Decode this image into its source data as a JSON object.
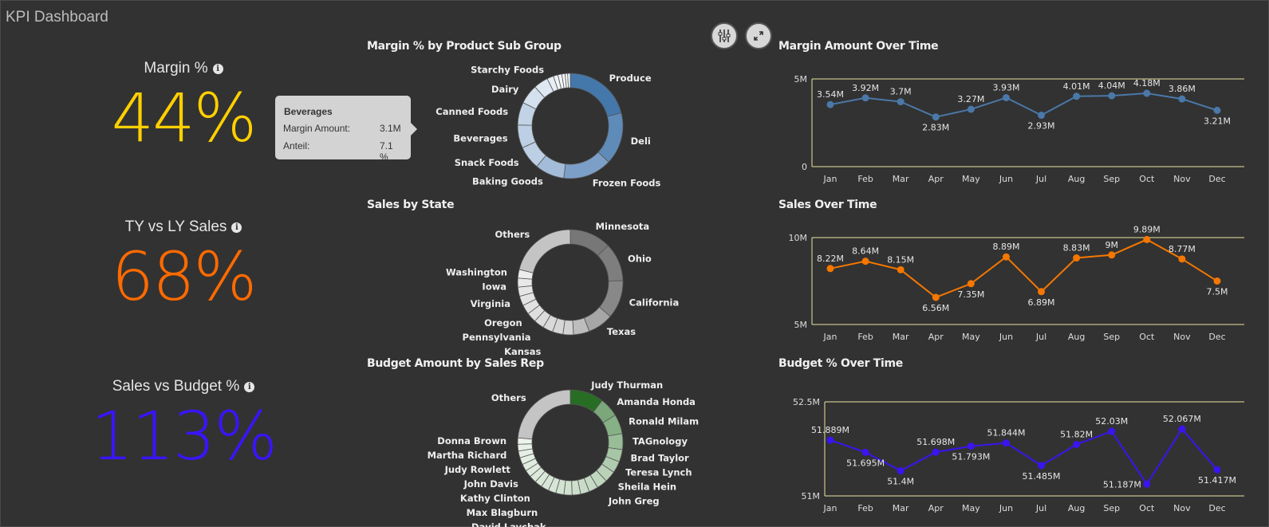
{
  "app": {
    "title": "KPI Dashboard"
  },
  "kpis": [
    {
      "label": "Margin %",
      "value": "44%",
      "color": "#ffd000"
    },
    {
      "label": "TY vs LY Sales",
      "value": "68%",
      "color": "#ff6a00"
    },
    {
      "label": "Sales vs Budget %",
      "value": "113%",
      "color": "#3a14ff"
    }
  ],
  "toolbar": {
    "filter_icon": "sliders-icon",
    "expand_icon": "expand-icon"
  },
  "tooltip": {
    "title": "Beverages",
    "rows": [
      {
        "label": "Margin Amount:",
        "value": "3.1M"
      },
      {
        "label": "Anteil:",
        "value": "7.1 %"
      }
    ]
  },
  "chart_data": [
    {
      "type": "pie",
      "title": "Margin % by Product Sub Group",
      "slices": [
        {
          "name": "Produce",
          "value": 21,
          "color": "#4477aa"
        },
        {
          "name": "Deli",
          "value": 16,
          "color": "#5f8bb9"
        },
        {
          "name": "Frozen Foods",
          "value": 15,
          "color": "#7c9fc7"
        },
        {
          "name": "Baking Goods",
          "value": 9,
          "color": "#a3bcd9"
        },
        {
          "name": "Snack Foods",
          "value": 7.2,
          "color": "#bccfe4"
        },
        {
          "name": "Beverages",
          "value": 7.1,
          "color": "#bccfe4"
        },
        {
          "name": "Canned Foods",
          "value": 7,
          "color": "#c2d3e6"
        },
        {
          "name": "Dairy",
          "value": 6,
          "color": "#d4e0ee"
        },
        {
          "name": "",
          "value": 4.5,
          "color": "#dfe8f2"
        },
        {
          "name": "Starchy Foods",
          "value": 2,
          "color": "#e6edf5"
        },
        {
          "name": "",
          "value": 1.4,
          "color": "#eef3f8"
        },
        {
          "name": "",
          "value": 1.2,
          "color": "#f2f6fa"
        },
        {
          "name": "",
          "value": 1,
          "color": "#f5f8fb"
        },
        {
          "name": "",
          "value": 0.8,
          "color": "#f8fafc"
        },
        {
          "name": "",
          "value": 0.8,
          "color": "#fafbfd"
        }
      ]
    },
    {
      "type": "pie",
      "title": "Sales by State",
      "slices": [
        {
          "name": "Minnesota",
          "value": 13,
          "color": "#777777"
        },
        {
          "name": "Ohio",
          "value": 12,
          "color": "#7e7e7e"
        },
        {
          "name": "California",
          "value": 12,
          "color": "#888888"
        },
        {
          "name": "Texas",
          "value": 8,
          "color": "#a6a6a6"
        },
        {
          "name": "",
          "value": 5,
          "color": "#bdbdbd"
        },
        {
          "name": "",
          "value": 3.3,
          "color": "#d2d2d2"
        },
        {
          "name": "",
          "value": 3.3,
          "color": "#d6d6d6"
        },
        {
          "name": "Kansas",
          "value": 3.2,
          "color": "#d9d9d9"
        },
        {
          "name": "Pennsylvania",
          "value": 3.2,
          "color": "#dcdcdc"
        },
        {
          "name": "Oregon",
          "value": 3.1,
          "color": "#dfdfdf"
        },
        {
          "name": "",
          "value": 3,
          "color": "#e1e1e1"
        },
        {
          "name": "Virginia",
          "value": 3,
          "color": "#e3e3e3"
        },
        {
          "name": "",
          "value": 2.9,
          "color": "#e5e5e5"
        },
        {
          "name": "Iowa",
          "value": 2.8,
          "color": "#e8e8e8"
        },
        {
          "name": "Washington",
          "value": 2.7,
          "color": "#ececec"
        },
        {
          "name": "Others",
          "value": 21.5,
          "color": "#c4c4c4"
        }
      ]
    },
    {
      "type": "pie",
      "title": "Budget Amount by Sales Rep",
      "slices": [
        {
          "name": "Judy Thurman",
          "value": 9.5,
          "color": "#276d24"
        },
        {
          "name": "Amanda Honda",
          "value": 5.5,
          "color": "#7ba77a"
        },
        {
          "name": "Ronald Milam",
          "value": 5.5,
          "color": "#86b085"
        },
        {
          "name": "TAGnology",
          "value": 4.5,
          "color": "#98bd97"
        },
        {
          "name": "Brad Taylor",
          "value": 3.5,
          "color": "#a6c6a5"
        },
        {
          "name": "Teresa Lynch",
          "value": 3.3,
          "color": "#b0ccaf"
        },
        {
          "name": "Sheila Hein",
          "value": 3.2,
          "color": "#b9d2b8"
        },
        {
          "name": "John Greg",
          "value": 3,
          "color": "#c0d7bf"
        },
        {
          "name": "",
          "value": 2.6,
          "color": "#c6dac5"
        },
        {
          "name": "",
          "value": 2.5,
          "color": "#cadcc9"
        },
        {
          "name": "",
          "value": 2.4,
          "color": "#cddfcd"
        },
        {
          "name": "",
          "value": 2.3,
          "color": "#d0e1d0"
        },
        {
          "name": "",
          "value": 2.3,
          "color": "#d3e3d2"
        },
        {
          "name": "David Laychak",
          "value": 2.2,
          "color": "#d6e5d5"
        },
        {
          "name": "Max Blagburn",
          "value": 2.2,
          "color": "#d8e6d7"
        },
        {
          "name": "Kathy Clinton",
          "value": 2.1,
          "color": "#dae8d9"
        },
        {
          "name": "",
          "value": 2.1,
          "color": "#dce9db"
        },
        {
          "name": "John Davis",
          "value": 2,
          "color": "#dfebde"
        },
        {
          "name": "",
          "value": 2,
          "color": "#e1ece0"
        },
        {
          "name": "Judy Rowlett",
          "value": 2,
          "color": "#e3eee2"
        },
        {
          "name": "",
          "value": 1.9,
          "color": "#e6efe5"
        },
        {
          "name": "Martha Richard",
          "value": 1.9,
          "color": "#e8f1e7"
        },
        {
          "name": "Donna Brown",
          "value": 1.8,
          "color": "#ebf3ea"
        },
        {
          "name": "Others",
          "value": 21.7,
          "color": "#c4c4c4"
        }
      ]
    },
    {
      "type": "line",
      "title": "Margin Amount Over Time",
      "categories": [
        "Jan",
        "Feb",
        "Mar",
        "Apr",
        "May",
        "Jun",
        "Jul",
        "Aug",
        "Sep",
        "Oct",
        "Nov",
        "Dec"
      ],
      "values": [
        3.54,
        3.92,
        3.7,
        2.83,
        3.27,
        3.93,
        2.93,
        4.01,
        4.04,
        4.18,
        3.86,
        3.21
      ],
      "labels": [
        "3.54M",
        "3.92M",
        "3.7M",
        "2.83M",
        "3.27M",
        "3.93M",
        "2.93M",
        "4.01M",
        "4.04M",
        "4.18M",
        "3.86M",
        "3.21M"
      ],
      "ylim": [
        0,
        5
      ],
      "yticks": [
        {
          "value": 0,
          "label": "0"
        },
        {
          "value": 5,
          "label": "5M"
        }
      ],
      "color": "#4a78a8"
    },
    {
      "type": "line",
      "title": "Sales Over Time",
      "categories": [
        "Jan",
        "Feb",
        "Mar",
        "Apr",
        "May",
        "Jun",
        "Jul",
        "Aug",
        "Sep",
        "Oct",
        "Nov",
        "Dec"
      ],
      "values": [
        8.22,
        8.64,
        8.15,
        6.56,
        7.35,
        8.89,
        6.89,
        8.83,
        9,
        9.89,
        8.77,
        7.5
      ],
      "labels": [
        "8.22M",
        "8.64M",
        "8.15M",
        "6.56M",
        "7.35M",
        "8.89M",
        "6.89M",
        "8.83M",
        "9M",
        "9.89M",
        "8.77M",
        "7.5M"
      ],
      "ylim": [
        5,
        10
      ],
      "yticks": [
        {
          "value": 5,
          "label": "5M"
        },
        {
          "value": 10,
          "label": "10M"
        }
      ],
      "color": "#f57700"
    },
    {
      "type": "line",
      "title": "Budget % Over Time",
      "categories": [
        "Jan",
        "Feb",
        "Mar",
        "Apr",
        "May",
        "Jun",
        "Jul",
        "Aug",
        "Sep",
        "Oct",
        "Nov",
        "Dec"
      ],
      "values": [
        51.889,
        51.695,
        51.4,
        51.698,
        51.793,
        51.844,
        51.485,
        51.82,
        52.03,
        51.187,
        52.067,
        51.417
      ],
      "labels": [
        "51.889M",
        "51.695M",
        "51.4M",
        "51.698M",
        "51.793M",
        "51.844M",
        "51.485M",
        "51.82M",
        "52.03M",
        "51.187M",
        "52.067M",
        "51.417M"
      ],
      "ylim": [
        51,
        52.5
      ],
      "yticks": [
        {
          "value": 51,
          "label": "51M"
        },
        {
          "value": 52.5,
          "label": "52.5M"
        }
      ],
      "color": "#3b14f0"
    }
  ]
}
